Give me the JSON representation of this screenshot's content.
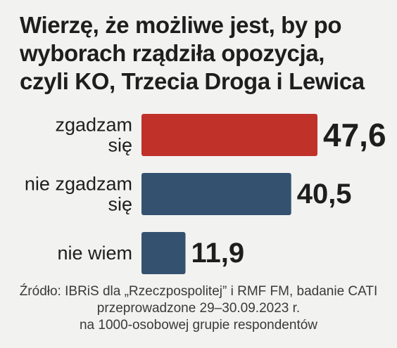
{
  "title_lines": [
    "Wierzę, że możliwe jest, by po",
    "wyborach rządziła opozycja,",
    "czyli KO, Trzecia Droga i Lewica"
  ],
  "source_lines": [
    "Źródło: IBRiS dla „Rzeczpospolitej” i RMF FM, badanie CATI",
    "przeprowadzone 29–30.09.2023 r.",
    "na 1000-osobowej grupie respondentów"
  ],
  "colors": {
    "accent": "#c0312a",
    "bar": "#34526f",
    "background": "#f2f2f1"
  },
  "chart_data": {
    "type": "bar",
    "orientation": "horizontal",
    "categories": [
      [
        "zgadzam",
        "się"
      ],
      [
        "nie zgadzam",
        "się"
      ],
      [
        "nie wiem"
      ]
    ],
    "values": [
      47.6,
      40.5,
      11.9
    ],
    "value_labels": [
      "47,6",
      "40,5",
      "11,9"
    ],
    "bar_colors": [
      "#c0312a",
      "#34526f",
      "#34526f"
    ],
    "xlim": [
      0,
      47.6
    ],
    "grid": false,
    "legend": "none"
  }
}
